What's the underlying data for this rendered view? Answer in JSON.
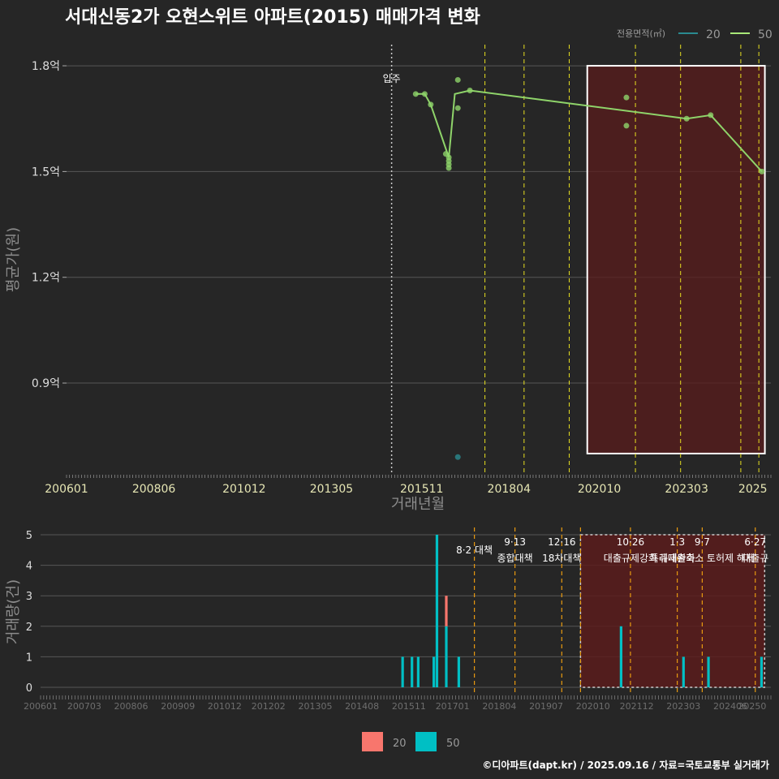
{
  "chart_data": [
    {
      "type": "line",
      "title": "서대신동2가 오현스위트 아파트(2015) 매매가격 변화",
      "xlabel": "거래년월",
      "ylabel": "평균가(원)",
      "ylim_eok": [
        0.64,
        1.86
      ],
      "y_ticks": [
        {
          "value": 0.9,
          "label": "0.9억"
        },
        {
          "value": 1.2,
          "label": "1.2억"
        },
        {
          "value": 1.5,
          "label": "1.5억"
        },
        {
          "value": 1.8,
          "label": "1.8억"
        }
      ],
      "x_ticks": [
        "200601",
        "200806",
        "201012",
        "201305",
        "201511",
        "201804",
        "202010",
        "202303",
        "2025"
      ],
      "grid": true,
      "legend": {
        "title": "전용면적(㎡)",
        "position": "top-right",
        "items": [
          {
            "label": "20",
            "color": "#2a8a8f"
          },
          {
            "label": "50",
            "color": "#a8e878"
          }
        ]
      },
      "series": [
        {
          "name": "50",
          "color": "#8fd46a",
          "line_points": [
            {
              "x": "2015-09",
              "y": 1.72
            },
            {
              "x": "2015-12",
              "y": 1.72
            },
            {
              "x": "2016-02",
              "y": 1.69
            },
            {
              "x": "2016-08",
              "y": 1.54
            },
            {
              "x": "2016-10",
              "y": 1.72
            },
            {
              "x": "2017-03",
              "y": 1.73
            },
            {
              "x": "2023-03",
              "y": 1.65
            },
            {
              "x": "2023-11",
              "y": 1.66
            },
            {
              "x": "2025-04",
              "y": 1.5
            }
          ],
          "points": [
            {
              "x": "2015-09",
              "y": 1.72
            },
            {
              "x": "2015-12",
              "y": 1.72
            },
            {
              "x": "2016-02",
              "y": 1.69
            },
            {
              "x": "2016-07",
              "y": 1.55
            },
            {
              "x": "2016-08",
              "y": 1.54
            },
            {
              "x": "2016-08",
              "y": 1.53
            },
            {
              "x": "2016-08",
              "y": 1.52
            },
            {
              "x": "2016-08",
              "y": 1.51
            },
            {
              "x": "2016-11",
              "y": 1.76
            },
            {
              "x": "2016-11",
              "y": 1.68
            },
            {
              "x": "2017-03",
              "y": 1.73
            },
            {
              "x": "2021-07",
              "y": 1.71
            },
            {
              "x": "2021-07",
              "y": 1.63
            },
            {
              "x": "2023-03",
              "y": 1.65
            },
            {
              "x": "2023-11",
              "y": 1.66
            },
            {
              "x": "2025-04",
              "y": 1.5
            }
          ]
        },
        {
          "name": "20",
          "color": "#2a8a8f",
          "points": [
            {
              "x": "2016-11",
              "y": 0.69
            }
          ]
        }
      ],
      "annotations": [
        {
          "label": "입주",
          "x": "2015-01"
        }
      ],
      "policy_lines": [
        "2017-08",
        "2018-09",
        "2019-12",
        "2021-10",
        "2023-01",
        "2024-09",
        "2025-03"
      ],
      "highlight_range": {
        "x": [
          "2020-06",
          "2025-05"
        ],
        "y": [
          0.7,
          1.8
        ]
      }
    },
    {
      "type": "bar",
      "ylabel": "거래량(건)",
      "ylim": [
        0,
        5
      ],
      "y_ticks": [
        0,
        1,
        2,
        3,
        4,
        5
      ],
      "x_ticks": [
        "200601",
        "200703",
        "200806",
        "200909",
        "201012",
        "201202",
        "201305",
        "201408",
        "201511",
        "201701",
        "201804",
        "201907",
        "202010",
        "202112",
        "202303",
        "202406",
        "20250"
      ],
      "legend": {
        "position": "bottom",
        "items": [
          {
            "label": "20",
            "color": "#f8766d"
          },
          {
            "label": "50",
            "color": "#00bfc4"
          }
        ]
      },
      "bars": [
        {
          "x": "2015-09",
          "s20": 0,
          "s50": 1
        },
        {
          "x": "2015-12",
          "s20": 0,
          "s50": 1
        },
        {
          "x": "2016-02",
          "s20": 0,
          "s50": 1
        },
        {
          "x": "2016-07",
          "s20": 0,
          "s50": 1
        },
        {
          "x": "2016-08",
          "s20": 0,
          "s50": 5
        },
        {
          "x": "2016-11",
          "s20": 1,
          "s50": 2
        },
        {
          "x": "2017-03",
          "s20": 0,
          "s50": 1
        },
        {
          "x": "2021-07",
          "s20": 0,
          "s50": 2
        },
        {
          "x": "2023-03",
          "s20": 0,
          "s50": 1
        },
        {
          "x": "2023-11",
          "s20": 0,
          "s50": 1
        },
        {
          "x": "2025-04",
          "s20": 0,
          "s50": 1
        }
      ],
      "policy_annotations": [
        {
          "x": "2017-08",
          "date": "",
          "text": "8·2 대책"
        },
        {
          "x": "2018-09",
          "date": "9·13",
          "text": "종합대책"
        },
        {
          "x": "2019-12",
          "date": "12·16",
          "text": "18차대책"
        },
        {
          "x": "2020-06",
          "date": "",
          "text": ""
        },
        {
          "x": "2021-10",
          "date": "10·26",
          "text": "대출규제강화"
        },
        {
          "x": "2023-01",
          "date": "1·3",
          "text": "규제완화"
        },
        {
          "x": "2023-09",
          "date": "9·7",
          "text": "특례대출축소 토허제 해제"
        },
        {
          "x": "2025-02",
          "date": "6·27",
          "text": "대출규"
        }
      ],
      "highlight_range": {
        "x": [
          "2020-06",
          "2025-05"
        ],
        "y": [
          0,
          5
        ]
      }
    }
  ],
  "footer": "©디아파트(dapt.kr) / 2025.09.16 / 자료=국토교통부 실거래가"
}
